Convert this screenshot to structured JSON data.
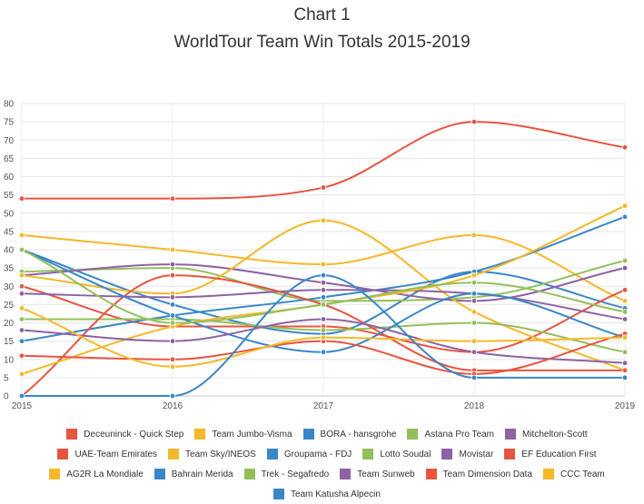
{
  "chart_data": {
    "type": "line",
    "title": "Chart 1",
    "subtitle": "WorldTour Team Win Totals 2015-2019",
    "xlabel": "",
    "ylabel": "",
    "x": [
      "2015",
      "2016",
      "2017",
      "2018",
      "2019"
    ],
    "ylim": [
      0,
      80
    ],
    "yticks": [
      0,
      5,
      10,
      15,
      20,
      25,
      30,
      35,
      40,
      45,
      50,
      55,
      60,
      65,
      70,
      75,
      80
    ],
    "grid": true,
    "legend_position": "bottom",
    "series": [
      {
        "name": "Deceuninck - Quick Step",
        "color": "#e8553f",
        "values": [
          54,
          54,
          57,
          75,
          68
        ]
      },
      {
        "name": "Team Jumbo-Visma",
        "color": "#f5b829",
        "values": [
          44,
          40,
          36,
          44,
          26
        ]
      },
      {
        "name": "BORA - hansgrohe",
        "color": "#3a87c8",
        "values": [
          40,
          25,
          17,
          34,
          24
        ]
      },
      {
        "name": "Astana Pro Team",
        "color": "#93bf5b",
        "values": [
          34,
          35,
          26,
          27,
          37
        ]
      },
      {
        "name": "Mitchelton-Scott",
        "color": "#8e62a4",
        "values": [
          33,
          36,
          31,
          26,
          35
        ]
      },
      {
        "name": "UAE-Team Emirates",
        "color": "#e8553f",
        "values": [
          30,
          19,
          19,
          12,
          29
        ]
      },
      {
        "name": "Team Sky/INEOS",
        "color": "#f5b829",
        "values": [
          33,
          28,
          48,
          23,
          7
        ]
      },
      {
        "name": "Groupama - FDJ",
        "color": "#3a87c8",
        "values": [
          15,
          22,
          27,
          34,
          49
        ]
      },
      {
        "name": "Lotto Soudal",
        "color": "#93bf5b",
        "values": [
          21,
          21,
          18,
          20,
          12
        ]
      },
      {
        "name": "Movistar",
        "color": "#8e62a4",
        "values": [
          28,
          27,
          29,
          28,
          21
        ]
      },
      {
        "name": "EF Education First",
        "color": "#e8553f",
        "values": [
          0,
          33,
          25,
          7,
          7
        ]
      },
      {
        "name": "AG2R La Mondiale",
        "color": "#f5b829",
        "values": [
          6,
          19,
          25,
          33,
          52
        ]
      },
      {
        "name": "Bahrain Merida",
        "color": "#3a87c8",
        "values": [
          40,
          22,
          12,
          28,
          16
        ]
      },
      {
        "name": "Trek - Segafredo",
        "color": "#93bf5b",
        "values": [
          40,
          20,
          25,
          31,
          23
        ]
      },
      {
        "name": "Team Sunweb",
        "color": "#8e62a4",
        "values": [
          18,
          15,
          21,
          12,
          9
        ]
      },
      {
        "name": "Team Dimension Data",
        "color": "#e8553f",
        "values": [
          11,
          10,
          15,
          6,
          17
        ]
      },
      {
        "name": "CCC Team",
        "color": "#f5b829",
        "values": [
          24,
          8,
          16,
          15,
          16
        ]
      },
      {
        "name": "Team Katusha Alpecin",
        "color": "#3a87c8",
        "values": [
          0,
          0,
          33,
          5,
          5
        ]
      }
    ]
  }
}
